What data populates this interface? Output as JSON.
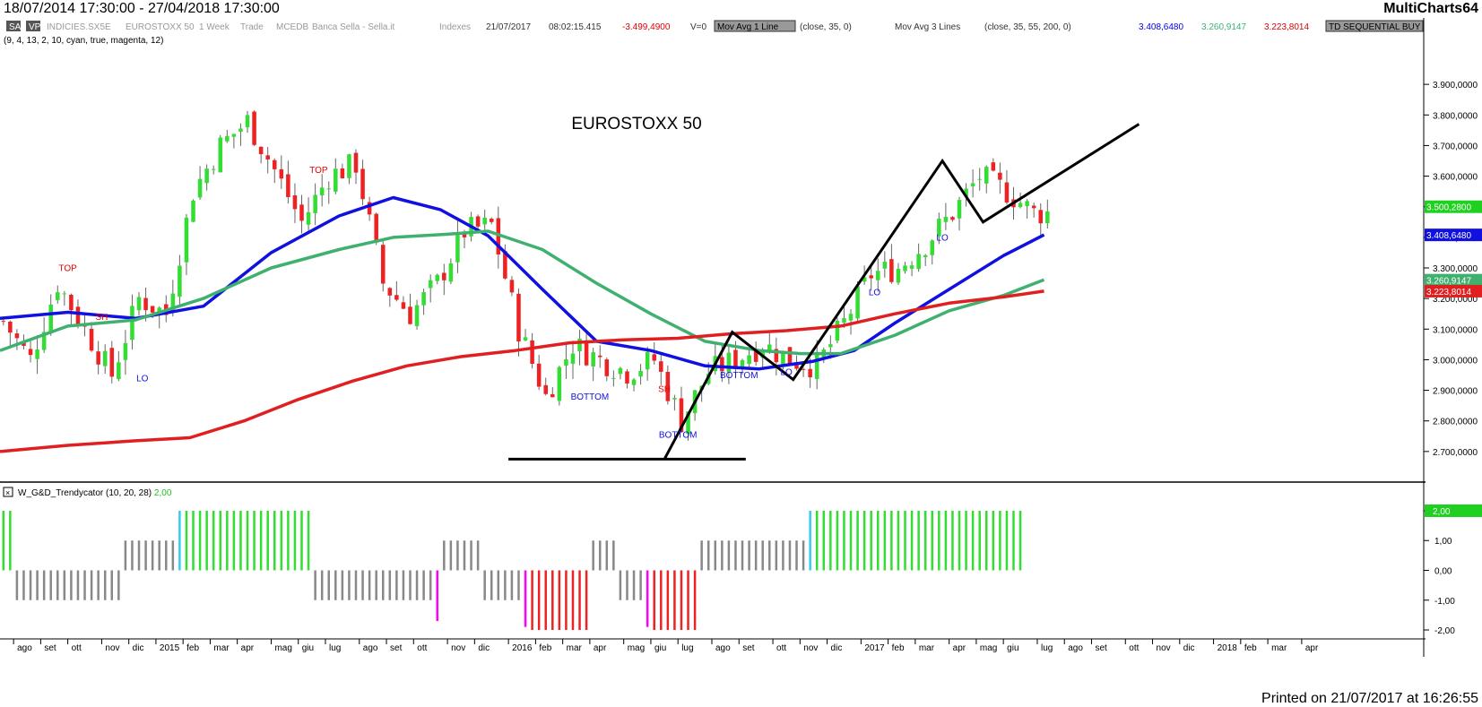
{
  "titlebar": {
    "dates": "18/07/2014 17:30:00 - 27/04/2018 17:30:00",
    "brand": "MultiCharts64"
  },
  "status": {
    "items": [
      {
        "text": "SA",
        "boxed": "dark"
      },
      {
        "text": "VP",
        "boxed": "dark"
      },
      {
        "text": "INDICIES.SX5E",
        "color": "#999999"
      },
      {
        "text": "EUROSTOXX 50",
        "color": "#999999"
      },
      {
        "text": "1 Week",
        "color": "#999999"
      },
      {
        "text": "Trade",
        "color": "#999999"
      },
      {
        "text": "MCEDB",
        "color": "#999999"
      },
      {
        "text": "Banca Sella - Sella.it",
        "color": "#999999"
      },
      {
        "text": "Indexes",
        "color": "#999999"
      },
      {
        "text": "21/07/2017",
        "color": "#333333"
      },
      {
        "text": "08:02:15.415",
        "color": "#333333"
      },
      {
        "text": "-3.499,4900",
        "color": "#e00000"
      },
      {
        "text": "V=0",
        "color": "#333333"
      },
      {
        "text": "Mov Avg 1 Line",
        "boxed": "grey"
      },
      {
        "text": "(close,  35,  0)",
        "color": "#333333"
      },
      {
        "text": "Mov Avg 3 Lines",
        "color": "#333333"
      },
      {
        "text": "(close,  35,  55,  200,  0)",
        "color": "#333333"
      },
      {
        "text": "3.408,6480",
        "color": "#0000ee"
      },
      {
        "text": "3.260,9147",
        "color": "#3cb371"
      },
      {
        "text": "3.223,8014",
        "color": "#e00000"
      },
      {
        "text": "TD SEQUENTIAL BUY",
        "boxed": "grey"
      }
    ],
    "params2": "(9,  4,  13,  2,  10,  cyan,  true,  magenta,  12)",
    "indicator_label": "W_G&D_Trendycator",
    "indicator_params": "(10,  20,  28)",
    "indicator_value": "2,00"
  },
  "footer": "Printed on 21/07/2017 at 16:26:55",
  "chart_data": {
    "type": "candlestick",
    "title": "EUROSTOXX 50",
    "ylim": [
      2600,
      4000
    ],
    "yticks": [
      "2.700,0000",
      "2.800,0000",
      "2.900,0000",
      "3.000,0000",
      "3.100,0000",
      "3.200,0000",
      "3.300,0000",
      "3.400,0000",
      "3.500,0000",
      "3.600,0000",
      "3.700,0000",
      "3.800,0000",
      "3.900,0000"
    ],
    "ytick_values": [
      2700,
      2800,
      2900,
      3000,
      3100,
      3200,
      3300,
      3400,
      3500,
      3600,
      3700,
      3800,
      3900
    ],
    "xlim": [
      0,
      210
    ],
    "xticks": [
      {
        "label": "ago",
        "x": 2
      },
      {
        "label": "set",
        "x": 6
      },
      {
        "label": "ott",
        "x": 10
      },
      {
        "label": "nov",
        "x": 15
      },
      {
        "label": "dic",
        "x": 19
      },
      {
        "label": "2015",
        "x": 23
      },
      {
        "label": "feb",
        "x": 27
      },
      {
        "label": "mar",
        "x": 31
      },
      {
        "label": "apr",
        "x": 35
      },
      {
        "label": "mag",
        "x": 40
      },
      {
        "label": "giu",
        "x": 44
      },
      {
        "label": "lug",
        "x": 48
      },
      {
        "label": "ago",
        "x": 53
      },
      {
        "label": "set",
        "x": 57
      },
      {
        "label": "ott",
        "x": 61
      },
      {
        "label": "nov",
        "x": 66
      },
      {
        "label": "dic",
        "x": 70
      },
      {
        "label": "2016",
        "x": 75
      },
      {
        "label": "feb",
        "x": 79
      },
      {
        "label": "mar",
        "x": 83
      },
      {
        "label": "apr",
        "x": 87
      },
      {
        "label": "mag",
        "x": 92
      },
      {
        "label": "giu",
        "x": 96
      },
      {
        "label": "lug",
        "x": 100
      },
      {
        "label": "ago",
        "x": 105
      },
      {
        "label": "set",
        "x": 109
      },
      {
        "label": "ott",
        "x": 114
      },
      {
        "label": "nov",
        "x": 118
      },
      {
        "label": "dic",
        "x": 122
      },
      {
        "label": "2017",
        "x": 127
      },
      {
        "label": "feb",
        "x": 131
      },
      {
        "label": "mar",
        "x": 135
      },
      {
        "label": "apr",
        "x": 140
      },
      {
        "label": "mag",
        "x": 144
      },
      {
        "label": "giu",
        "x": 148
      },
      {
        "label": "lug",
        "x": 153
      },
      {
        "label": "ago",
        "x": 157
      },
      {
        "label": "set",
        "x": 161
      },
      {
        "label": "ott",
        "x": 166
      },
      {
        "label": "nov",
        "x": 170
      },
      {
        "label": "dic",
        "x": 174
      },
      {
        "label": "2018",
        "x": 179
      },
      {
        "label": "feb",
        "x": 183
      },
      {
        "label": "mar",
        "x": 187
      },
      {
        "label": "apr",
        "x": 192
      }
    ],
    "close_keypoints": [
      [
        0,
        3125
      ],
      [
        4,
        3000
      ],
      [
        8,
        3250
      ],
      [
        12,
        3100
      ],
      [
        16,
        2950
      ],
      [
        20,
        3200
      ],
      [
        24,
        3150
      ],
      [
        28,
        3550
      ],
      [
        32,
        3700
      ],
      [
        36,
        3780
      ],
      [
        40,
        3620
      ],
      [
        44,
        3450
      ],
      [
        48,
        3600
      ],
      [
        52,
        3640
      ],
      [
        56,
        3250
      ],
      [
        60,
        3150
      ],
      [
        64,
        3250
      ],
      [
        68,
        3420
      ],
      [
        72,
        3440
      ],
      [
        76,
        3100
      ],
      [
        80,
        2880
      ],
      [
        84,
        3050
      ],
      [
        88,
        3000
      ],
      [
        92,
        2960
      ],
      [
        96,
        3000
      ],
      [
        100,
        2800
      ],
      [
        104,
        2960
      ],
      [
        108,
        3000
      ],
      [
        112,
        3050
      ],
      [
        116,
        3000
      ],
      [
        120,
        2980
      ],
      [
        124,
        3120
      ],
      [
        128,
        3280
      ],
      [
        132,
        3300
      ],
      [
        136,
        3380
      ],
      [
        140,
        3480
      ],
      [
        144,
        3600
      ],
      [
        148,
        3550
      ],
      [
        152,
        3480
      ]
    ],
    "n_bars": 155,
    "moving_averages": [
      {
        "period": 35,
        "color": "#1010e0",
        "points": [
          [
            0,
            3135
          ],
          [
            10,
            3155
          ],
          [
            20,
            3135
          ],
          [
            30,
            3175
          ],
          [
            40,
            3350
          ],
          [
            50,
            3470
          ],
          [
            58,
            3530
          ],
          [
            65,
            3490
          ],
          [
            72,
            3405
          ],
          [
            80,
            3230
          ],
          [
            88,
            3060
          ],
          [
            96,
            3030
          ],
          [
            104,
            2980
          ],
          [
            112,
            2970
          ],
          [
            120,
            2995
          ],
          [
            126,
            3030
          ],
          [
            132,
            3120
          ],
          [
            140,
            3230
          ],
          [
            148,
            3340
          ],
          [
            154,
            3408
          ]
        ]
      },
      {
        "period": 55,
        "color": "#40b070",
        "points": [
          [
            0,
            3030
          ],
          [
            10,
            3110
          ],
          [
            20,
            3130
          ],
          [
            30,
            3200
          ],
          [
            40,
            3300
          ],
          [
            50,
            3360
          ],
          [
            58,
            3400
          ],
          [
            66,
            3410
          ],
          [
            72,
            3420
          ],
          [
            80,
            3360
          ],
          [
            88,
            3250
          ],
          [
            96,
            3150
          ],
          [
            104,
            3060
          ],
          [
            112,
            3030
          ],
          [
            118,
            3020
          ],
          [
            124,
            3020
          ],
          [
            132,
            3080
          ],
          [
            140,
            3160
          ],
          [
            148,
            3210
          ],
          [
            154,
            3261
          ]
        ]
      },
      {
        "period": 200,
        "color": "#e02020",
        "points": [
          [
            0,
            2700
          ],
          [
            10,
            2720
          ],
          [
            20,
            2735
          ],
          [
            28,
            2745
          ],
          [
            36,
            2800
          ],
          [
            44,
            2870
          ],
          [
            52,
            2930
          ],
          [
            60,
            2980
          ],
          [
            68,
            3010
          ],
          [
            76,
            3030
          ],
          [
            84,
            3055
          ],
          [
            92,
            3065
          ],
          [
            100,
            3070
          ],
          [
            108,
            3085
          ],
          [
            116,
            3095
          ],
          [
            124,
            3110
          ],
          [
            132,
            3150
          ],
          [
            140,
            3185
          ],
          [
            148,
            3205
          ],
          [
            154,
            3224
          ]
        ]
      }
    ],
    "trend_lines": [
      {
        "points": [
          [
            75,
            2675
          ],
          [
            110,
            2675
          ]
        ]
      },
      {
        "points": [
          [
            98,
            2675
          ],
          [
            108,
            3090
          ],
          [
            117,
            2935
          ],
          [
            139,
            3650
          ],
          [
            145,
            3450
          ],
          [
            168,
            3770
          ]
        ]
      }
    ],
    "annotations": [
      {
        "text": "TOP",
        "x": 10,
        "y": 3290,
        "color": "#e00000"
      },
      {
        "text": "SH",
        "x": 15,
        "y": 3130,
        "color": "#e00000"
      },
      {
        "text": "LO",
        "x": 21,
        "y": 2930,
        "color": "#1010e0"
      },
      {
        "text": "TOP",
        "x": 47,
        "y": 3610,
        "color": "#e00000"
      },
      {
        "text": "BOTTOM",
        "x": 87,
        "y": 2870,
        "color": "#1010e0"
      },
      {
        "text": "SH",
        "x": 98,
        "y": 2895,
        "color": "#e00000"
      },
      {
        "text": "BOTTOM",
        "x": 100,
        "y": 2745,
        "color": "#1010e0"
      },
      {
        "text": "BOTTOM",
        "x": 109,
        "y": 2940,
        "color": "#1010e0"
      },
      {
        "text": "LO",
        "x": 116,
        "y": 2950,
        "color": "#1010e0"
      },
      {
        "text": "LO",
        "x": 129,
        "y": 3210,
        "color": "#1010e0"
      },
      {
        "text": "LO",
        "x": 139,
        "y": 3390,
        "color": "#1010e0"
      }
    ],
    "price_labels": [
      {
        "text": "3.500,2800",
        "value": 3500,
        "bg": "#20d020"
      },
      {
        "text": "3.408,6480",
        "value": 3408,
        "bg": "#1010e0"
      },
      {
        "text": "3.260,9147",
        "value": 3260,
        "bg": "#40b070"
      },
      {
        "text": "3.223,8014",
        "value": 3224,
        "bg": "#e02020"
      }
    ],
    "indicator": {
      "name": "W_G&D_Trendycator",
      "ylim": [
        -2.3,
        2.3
      ],
      "yticks": [
        "2,00",
        "1,00",
        "0,00",
        "-1,00",
        "-2,00"
      ],
      "ytick_values": [
        2,
        1,
        0,
        -1,
        -2
      ],
      "value_label": "2,00",
      "segments": [
        {
          "from": 0,
          "to": 1,
          "value": 2,
          "color": "#33dd33"
        },
        {
          "from": 2,
          "to": 17,
          "value": -1,
          "color": "#888888"
        },
        {
          "from": 18,
          "to": 25,
          "value": 1,
          "color": "#888888"
        },
        {
          "from": 26,
          "to": 26,
          "value": 2,
          "color": "#33ccee"
        },
        {
          "from": 27,
          "to": 45,
          "value": 2,
          "color": "#33dd33"
        },
        {
          "from": 46,
          "to": 63,
          "value": -1,
          "color": "#888888"
        },
        {
          "from": 64,
          "to": 64,
          "value": -1.7,
          "color": "#ff00ff"
        },
        {
          "from": 65,
          "to": 70,
          "value": 1,
          "color": "#888888"
        },
        {
          "from": 71,
          "to": 76,
          "value": -1,
          "color": "#888888"
        },
        {
          "from": 77,
          "to": 77,
          "value": -1.9,
          "color": "#ff00ff"
        },
        {
          "from": 78,
          "to": 86,
          "value": -2,
          "color": "#ee2222"
        },
        {
          "from": 87,
          "to": 90,
          "value": 1,
          "color": "#888888"
        },
        {
          "from": 91,
          "to": 94,
          "value": -1,
          "color": "#888888"
        },
        {
          "from": 95,
          "to": 95,
          "value": -1.9,
          "color": "#ff00ff"
        },
        {
          "from": 96,
          "to": 102,
          "value": -2,
          "color": "#ee2222"
        },
        {
          "from": 103,
          "to": 118,
          "value": 1,
          "color": "#888888"
        },
        {
          "from": 119,
          "to": 119,
          "value": 2,
          "color": "#33ccee"
        },
        {
          "from": 120,
          "to": 150,
          "value": 2,
          "color": "#33dd33"
        }
      ]
    }
  }
}
